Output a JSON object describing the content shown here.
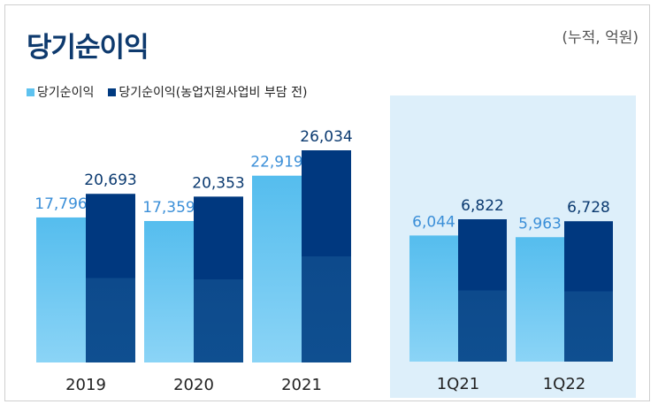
{
  "title": "당기순이익",
  "unit": "(누적, 억원)",
  "colors": {
    "light": "#5ec2ef",
    "dark": "#003a80",
    "light_label": "#3b8fd8",
    "dark_label": "#0b3a70"
  },
  "chart_data": [
    {
      "type": "bar",
      "categories": [
        "2019",
        "2020",
        "2021"
      ],
      "series": [
        {
          "name": "당기순이익",
          "values": [
            17796,
            17359,
            22919
          ]
        },
        {
          "name": "당기순이익(농업지원사업비 부담 전)",
          "values": [
            20693,
            20353,
            26034
          ]
        }
      ],
      "legend": "top-left"
    },
    {
      "type": "bar",
      "categories": [
        "1Q21",
        "1Q22"
      ],
      "series": [
        {
          "name": "당기순이익",
          "values": [
            6044,
            5963
          ]
        },
        {
          "name": "당기순이익(농업지원사업비 부담 전)",
          "values": [
            6822,
            6728
          ]
        }
      ],
      "background": "highlighted"
    }
  ]
}
